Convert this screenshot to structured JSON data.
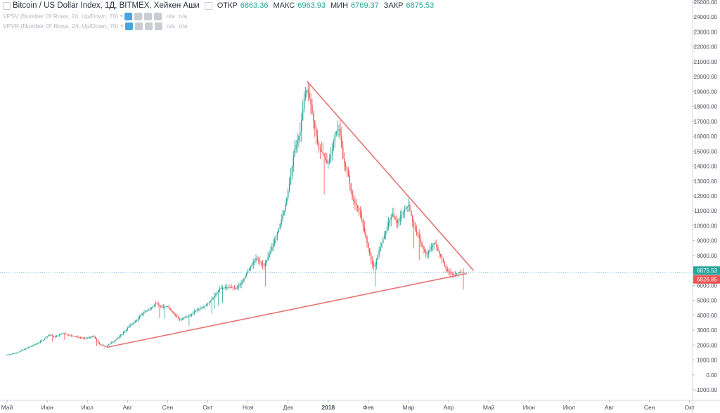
{
  "header": {
    "title": "Bitcoin / US Dollar Index, 1Д, BITMEX, Хейкен Аши",
    "open_label": "ОТКР",
    "open_value": "6863.36",
    "high_label": "МАКС",
    "high_value": "6963.93",
    "low_label": "МИН",
    "low_value": "6769.37",
    "close_label": "ЗАКР",
    "close_value": "6875.53"
  },
  "indicators": [
    {
      "name": "VPSV (Number Of Rows, 24, Up/Down, 70)",
      "v1": "n/a",
      "v2": "n/a"
    },
    {
      "name": "VPVR (Number Of Rows, 24, Up/Down, 70)",
      "v1": "n/a",
      "v2": "n/a"
    }
  ],
  "colors": {
    "up": "#26a69a",
    "down": "#ef5350",
    "trendline": "#e57373",
    "price_line": "#4aa3df",
    "current_price_bg": "#26a69a",
    "prev_close_bg": "#ef5350"
  },
  "chart_data": {
    "type": "candlestick (heikin ashi)",
    "title": "Bitcoin / US Dollar Index, 1Д, BITMEX, Хейкен Аши",
    "y_axis_side": "right",
    "ylim": [
      -1000,
      25000
    ],
    "y_ticks": [
      "25000.00",
      "24000.00",
      "23000.00",
      "22000.00",
      "21000.00",
      "20000.00",
      "19000.00",
      "18000.00",
      "17000.00",
      "16000.00",
      "15000.00",
      "14000.00",
      "13000.00",
      "12000.00",
      "11000.00",
      "10000.00",
      "9000.00",
      "8000.00",
      "7000.00",
      "6000.00",
      "5000.00",
      "4000.00",
      "3000.00",
      "2000.00",
      "1000.00",
      "0.00",
      "-1000.00"
    ],
    "x_ticks": [
      "Май",
      "Июн",
      "Июл",
      "Авг",
      "Сен",
      "Окт",
      "Ноя",
      "Дек",
      "2018",
      "Фев",
      "Мар",
      "Апр",
      "Май",
      "Июн",
      "Июл",
      "Авг",
      "Сен",
      "Окт"
    ],
    "x_tick_months_index": [
      0,
      1,
      2,
      3,
      4,
      5,
      6,
      7,
      8,
      9,
      10,
      11,
      12,
      13,
      14,
      15,
      16,
      17
    ],
    "current_price": 6875.53,
    "current_price_label": "6875.53",
    "prev_close_price": 6826.85,
    "prev_close_label": "6826.85",
    "price_path": [
      [
        0.0,
        1350
      ],
      [
        0.25,
        1500
      ],
      [
        0.45,
        1750
      ],
      [
        0.7,
        2050
      ],
      [
        0.9,
        2350
      ],
      [
        1.05,
        2700
      ],
      [
        1.2,
        2550
      ],
      [
        1.4,
        2800
      ],
      [
        1.55,
        2650
      ],
      [
        1.75,
        2550
      ],
      [
        1.95,
        2450
      ],
      [
        2.15,
        2600
      ],
      [
        2.3,
        2050
      ],
      [
        2.45,
        1900
      ],
      [
        2.65,
        2250
      ],
      [
        2.85,
        2700
      ],
      [
        3.05,
        3300
      ],
      [
        3.2,
        3600
      ],
      [
        3.4,
        4200
      ],
      [
        3.55,
        4400
      ],
      [
        3.7,
        4800
      ],
      [
        3.85,
        4550
      ],
      [
        4.0,
        4600
      ],
      [
        4.15,
        4100
      ],
      [
        4.3,
        3700
      ],
      [
        4.5,
        3900
      ],
      [
        4.7,
        4300
      ],
      [
        4.9,
        4600
      ],
      [
        5.05,
        4900
      ],
      [
        5.3,
        5800
      ],
      [
        5.5,
        5900
      ],
      [
        5.7,
        5800
      ],
      [
        5.85,
        6200
      ],
      [
        6.0,
        7000
      ],
      [
        6.2,
        7800
      ],
      [
        6.4,
        7300
      ],
      [
        6.55,
        8200
      ],
      [
        6.75,
        9700
      ],
      [
        6.9,
        11000
      ],
      [
        7.05,
        13000
      ],
      [
        7.15,
        15000
      ],
      [
        7.3,
        16300
      ],
      [
        7.4,
        18600
      ],
      [
        7.48,
        19200
      ],
      [
        7.56,
        18200
      ],
      [
        7.66,
        16600
      ],
      [
        7.76,
        15200
      ],
      [
        7.88,
        14800
      ],
      [
        7.98,
        14100
      ],
      [
        8.08,
        14900
      ],
      [
        8.18,
        16300
      ],
      [
        8.28,
        16500
      ],
      [
        8.38,
        14200
      ],
      [
        8.48,
        13700
      ],
      [
        8.6,
        11800
      ],
      [
        8.72,
        11300
      ],
      [
        8.82,
        10600
      ],
      [
        8.9,
        9600
      ],
      [
        9.0,
        8500
      ],
      [
        9.08,
        7500
      ],
      [
        9.15,
        7200
      ],
      [
        9.25,
        8200
      ],
      [
        9.38,
        9200
      ],
      [
        9.5,
        10200
      ],
      [
        9.6,
        10800
      ],
      [
        9.7,
        10200
      ],
      [
        9.8,
        10600
      ],
      [
        9.9,
        11100
      ],
      [
        10.0,
        11400
      ],
      [
        10.08,
        10500
      ],
      [
        10.15,
        9800
      ],
      [
        10.25,
        9300
      ],
      [
        10.35,
        8500
      ],
      [
        10.45,
        8000
      ],
      [
        10.55,
        8500
      ],
      [
        10.65,
        8900
      ],
      [
        10.75,
        8200
      ],
      [
        10.85,
        7700
      ],
      [
        10.95,
        7000
      ],
      [
        11.05,
        6800
      ],
      [
        11.15,
        6700
      ],
      [
        11.25,
        6900
      ],
      [
        11.38,
        6875
      ]
    ],
    "trendlines": [
      {
        "from": [
          7.47,
          19700
        ],
        "to": [
          11.62,
          7000
        ]
      },
      {
        "from": [
          2.48,
          1850
        ],
        "to": [
          11.45,
          6800
        ]
      }
    ]
  }
}
